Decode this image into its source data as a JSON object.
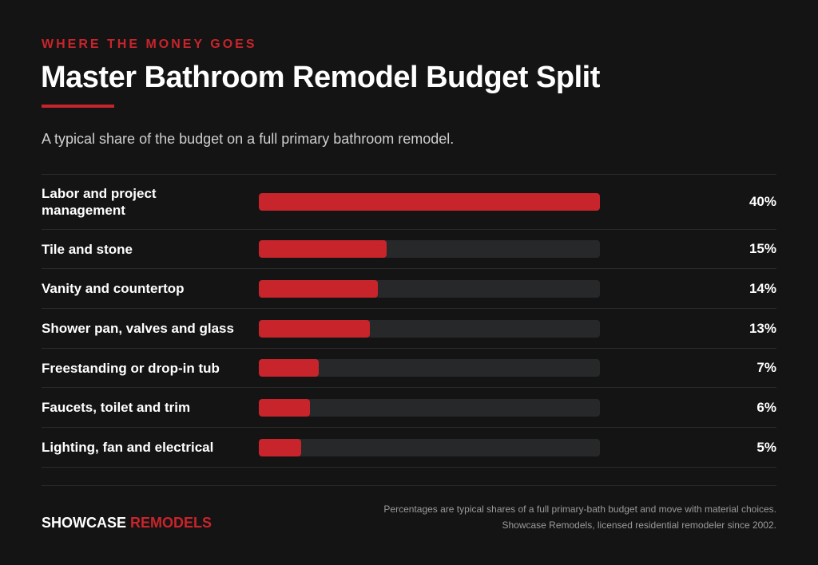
{
  "header": {
    "eyebrow": "WHERE THE MONEY GOES",
    "title": "Master Bathroom Remodel Budget Split",
    "subtitle": "A typical share of the budget on a full primary bathroom remodel."
  },
  "chart_data": {
    "type": "bar",
    "orientation": "horizontal",
    "categories": [
      "Labor and project management",
      "Tile and stone",
      "Vanity and countertop",
      "Shower pan, valves and glass",
      "Freestanding or drop-in tub",
      "Faucets, toilet and trim",
      "Lighting, fan and electrical"
    ],
    "values": [
      40,
      15,
      14,
      13,
      7,
      6,
      5
    ],
    "value_labels": [
      "40%",
      "15%",
      "14%",
      "13%",
      "7%",
      "6%",
      "5%"
    ],
    "xlim": [
      0,
      40
    ],
    "title": "Master Bathroom Remodel Budget Split",
    "xlabel": "",
    "ylabel": ""
  },
  "footer": {
    "brand_part1": "SHOWCASE",
    "brand_part2": "REMODELS",
    "note_line1": "Percentages are typical shares of a full primary-bath budget and move with material choices.",
    "note_line2": "Showcase Remodels, licensed residential remodeler since 2002."
  },
  "colors": {
    "background": "#141414",
    "accent": "#c8242b",
    "track": "#26282a",
    "divider": "#2a2a2a"
  }
}
